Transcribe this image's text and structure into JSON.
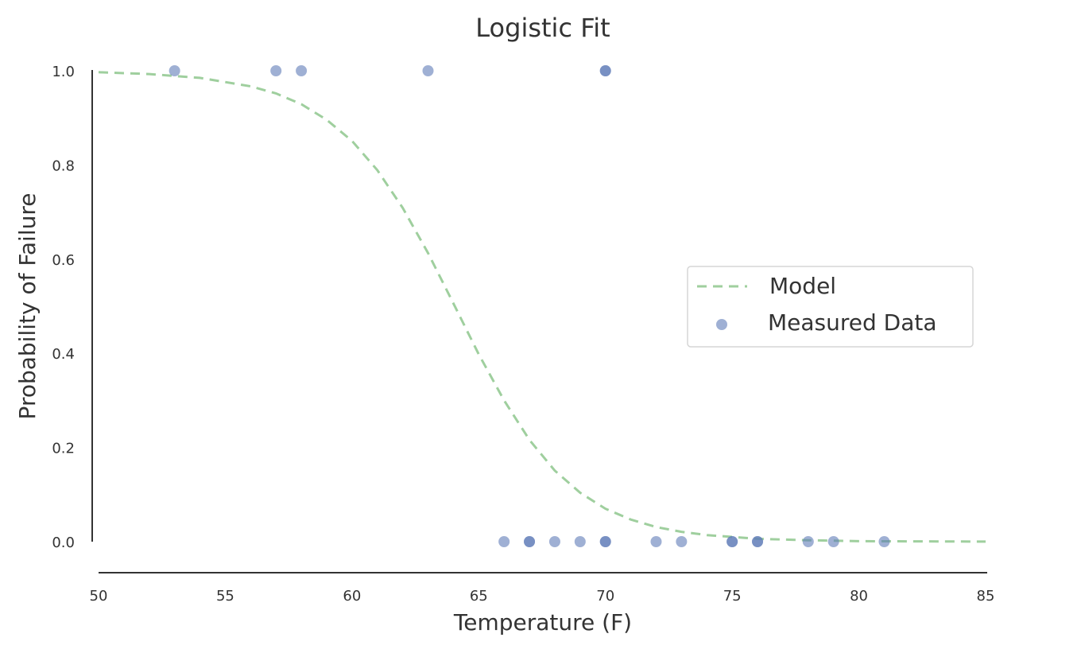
{
  "chart_data": {
    "type": "scatter",
    "title": "Logistic Fit",
    "xlabel": "Temperature (F)",
    "ylabel": "Probability of Failure",
    "xlim": [
      50,
      85
    ],
    "ylim": [
      0,
      1
    ],
    "xticks": [
      "50",
      "55",
      "60",
      "65",
      "70",
      "75",
      "80",
      "85"
    ],
    "yticks": [
      "0.0",
      "0.2",
      "0.4",
      "0.6",
      "0.8",
      "1.0"
    ],
    "grid": false,
    "legend_position": "center-right",
    "series": [
      {
        "name": "Model",
        "kind": "line",
        "style": "dashed",
        "color": "#9fcf9e",
        "x": [
          50,
          52,
          54,
          56,
          57,
          58,
          59,
          60,
          61,
          62,
          63,
          64,
          65,
          66,
          67,
          68,
          69,
          70,
          71,
          72,
          73,
          74,
          76,
          78,
          80,
          82,
          85
        ],
        "y": [
          0.997,
          0.993,
          0.985,
          0.967,
          0.952,
          0.929,
          0.896,
          0.851,
          0.789,
          0.709,
          0.613,
          0.506,
          0.398,
          0.3,
          0.216,
          0.151,
          0.104,
          0.07,
          0.047,
          0.031,
          0.021,
          0.014,
          0.006,
          0.003,
          0.001,
          0.0006,
          0.0002
        ]
      },
      {
        "name": "Measured Data",
        "kind": "scatter",
        "color": "#5f7bb8",
        "x": [
          53,
          57,
          58,
          63,
          70,
          70,
          66,
          67,
          67,
          68,
          69,
          70,
          70,
          72,
          73,
          75,
          75,
          76,
          76,
          78,
          79,
          81
        ],
        "y": [
          1,
          1,
          1,
          1,
          1,
          1,
          0,
          0,
          0,
          0,
          0,
          0,
          0,
          0,
          0,
          0,
          0,
          0,
          0,
          0,
          0,
          0
        ]
      }
    ]
  }
}
